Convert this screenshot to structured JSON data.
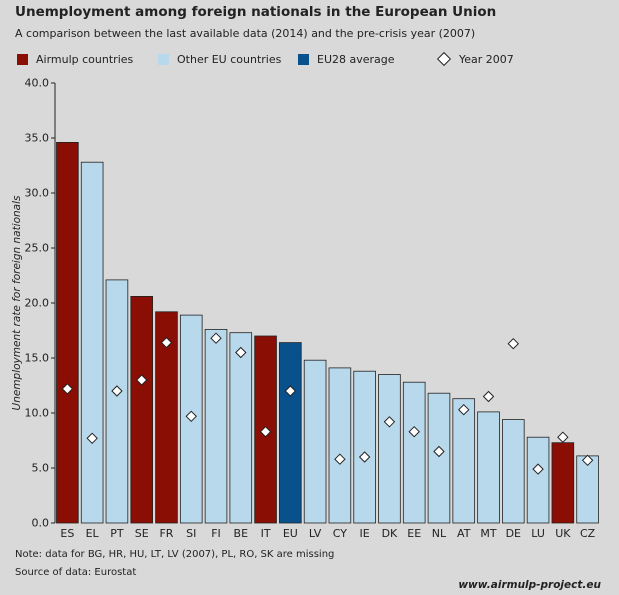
{
  "title": "Unemployment among foreign nationals in the European Union",
  "subtitle": "A comparison between the last available data (2014) and the pre-crisis year (2007)",
  "legend": [
    {
      "label": "Airmulp countries",
      "color": "#8b0e04",
      "shape": "square"
    },
    {
      "label": "Other EU countries",
      "color": "#b8d9ec",
      "shape": "square"
    },
    {
      "label": "EU28 average",
      "color": "#08518c",
      "shape": "square"
    },
    {
      "label": "Year 2007",
      "color": "#ffffff",
      "shape": "diamond"
    }
  ],
  "note": "Note: data for BG, HR, HU, LT, LV (2007), PL, RO, SK are missing",
  "source": "Source of data: Eurostat",
  "website": "www.airmulp-project.eu",
  "colors": {
    "airmulp": "#8b0e04",
    "other": "#b8d9ec",
    "eu": "#08518c"
  },
  "chart_data": {
    "type": "bar",
    "ylabel": "Unemployment rate for foreign nationals",
    "ylim": [
      0,
      40
    ],
    "yticks": [
      "0.0",
      "5.0",
      "10.0",
      "15.0",
      "20.0",
      "25.0",
      "30.0",
      "35.0",
      "40.0"
    ],
    "categories": [
      "ES",
      "EL",
      "PT",
      "SE",
      "FR",
      "SI",
      "FI",
      "BE",
      "IT",
      "EU",
      "LV",
      "CY",
      "IE",
      "DK",
      "EE",
      "NL",
      "AT",
      "MT",
      "DE",
      "LU",
      "UK",
      "CZ"
    ],
    "groups": [
      "airmulp",
      "other",
      "other",
      "airmulp",
      "airmulp",
      "other",
      "other",
      "other",
      "airmulp",
      "eu",
      "other",
      "other",
      "other",
      "other",
      "other",
      "other",
      "other",
      "other",
      "other",
      "other",
      "airmulp",
      "other"
    ],
    "series": [
      {
        "name": "2014",
        "values": [
          34.6,
          32.8,
          22.1,
          20.6,
          19.2,
          18.9,
          17.6,
          17.3,
          17.0,
          16.4,
          14.8,
          14.1,
          13.8,
          13.5,
          12.8,
          11.8,
          11.3,
          10.1,
          9.4,
          7.8,
          7.3,
          6.1
        ]
      },
      {
        "name": "Year 2007",
        "values": [
          12.2,
          7.7,
          12.0,
          13.0,
          16.4,
          9.7,
          16.8,
          15.5,
          8.3,
          12.0,
          null,
          5.8,
          6.0,
          9.2,
          8.3,
          6.5,
          10.3,
          11.5,
          16.3,
          4.9,
          7.8,
          5.7
        ]
      }
    ]
  }
}
